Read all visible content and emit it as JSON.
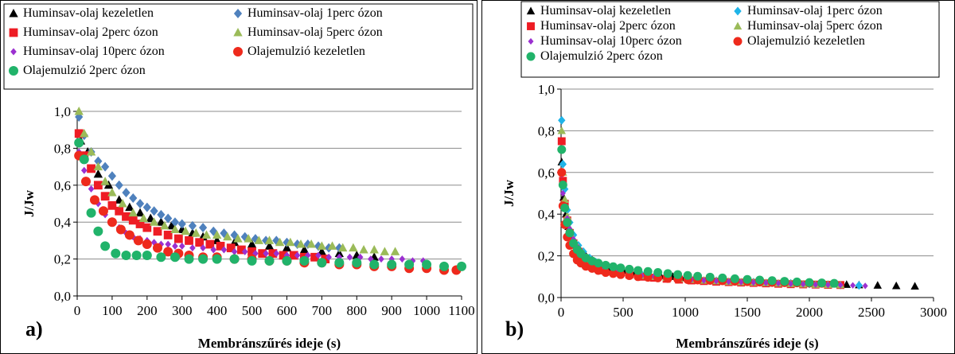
{
  "figure": {
    "colors": {
      "kezeletlen": "#000000",
      "perc1": "#4f81bd",
      "perc1_b": "#1fb4e8",
      "perc2": "#ee1c24",
      "perc5": "#9bbb59",
      "perc10": "#9b30d0",
      "olaj_kezeletlen": "#ee2a1c",
      "olaj_2perc": "#21b36a",
      "grid": "#8c8c8c"
    },
    "series_style": [
      {
        "marker": "triangle",
        "color_key": "kezeletlen"
      },
      {
        "marker": "diamond",
        "color_key": "perc1"
      },
      {
        "marker": "square",
        "color_key": "perc2"
      },
      {
        "marker": "triangle",
        "color_key": "perc5"
      },
      {
        "marker": "diamond-small",
        "color_key": "perc10"
      },
      {
        "marker": "circle",
        "color_key": "olaj_kezeletlen"
      },
      {
        "marker": "circle",
        "color_key": "olaj_2perc"
      }
    ]
  },
  "chart_data": [
    {
      "type": "scatter",
      "panel_label": "a)",
      "xlabel": "Membránszűrés ideje (s)",
      "ylabel": "J/Jw",
      "xlim": [
        0,
        1100
      ],
      "ylim": [
        0,
        1.0
      ],
      "xticks": [
        "0",
        "100",
        "200",
        "300",
        "400",
        "500",
        "600",
        "700",
        "800",
        "900",
        "1000",
        "1100"
      ],
      "yticks": [
        "0,0",
        "0,2",
        "0,4",
        "0,6",
        "0,8",
        "1,0"
      ],
      "grid": true,
      "legend": "top",
      "series": [
        {
          "name": "Huminsav-olaj kezeletlen",
          "x": [
            10,
            30,
            60,
            90,
            120,
            150,
            180,
            210,
            240,
            270,
            300,
            330,
            360,
            400,
            450,
            500,
            550,
            600,
            650,
            700,
            750,
            800,
            850
          ],
          "y": [
            0.84,
            0.78,
            0.66,
            0.6,
            0.52,
            0.48,
            0.45,
            0.42,
            0.4,
            0.38,
            0.36,
            0.34,
            0.32,
            0.3,
            0.29,
            0.28,
            0.27,
            0.26,
            0.25,
            0.24,
            0.23,
            0.22,
            0.21
          ]
        },
        {
          "name": "Huminsav-olaj 1perc ózon",
          "x": [
            5,
            20,
            40,
            60,
            80,
            100,
            120,
            140,
            160,
            180,
            200,
            220,
            240,
            260,
            280,
            300,
            330,
            360,
            390,
            420,
            450,
            480,
            510,
            540,
            570,
            600,
            630,
            660,
            690,
            720,
            750
          ],
          "y": [
            0.97,
            0.87,
            0.78,
            0.73,
            0.7,
            0.65,
            0.6,
            0.56,
            0.53,
            0.5,
            0.48,
            0.46,
            0.44,
            0.42,
            0.4,
            0.39,
            0.38,
            0.37,
            0.35,
            0.34,
            0.33,
            0.32,
            0.31,
            0.3,
            0.3,
            0.29,
            0.28,
            0.28,
            0.27,
            0.26,
            0.26
          ]
        },
        {
          "name": "Huminsav-olaj 2perc ózon",
          "x": [
            5,
            20,
            40,
            60,
            80,
            100,
            120,
            140,
            160,
            180,
            200,
            230,
            260,
            290,
            320,
            350,
            380,
            410,
            440,
            470,
            500,
            530,
            560,
            590,
            620,
            650,
            680,
            710
          ],
          "y": [
            0.88,
            0.76,
            0.69,
            0.6,
            0.54,
            0.49,
            0.46,
            0.43,
            0.41,
            0.39,
            0.37,
            0.35,
            0.33,
            0.31,
            0.3,
            0.29,
            0.28,
            0.27,
            0.26,
            0.25,
            0.24,
            0.23,
            0.23,
            0.22,
            0.22,
            0.21,
            0.21,
            0.2
          ]
        },
        {
          "name": "Huminsav-olaj 5perc ózon",
          "x": [
            5,
            20,
            40,
            60,
            80,
            100,
            130,
            160,
            190,
            220,
            250,
            280,
            310,
            340,
            370,
            400,
            430,
            460,
            490,
            520,
            550,
            580,
            610,
            640,
            670,
            700,
            730,
            760,
            790,
            820,
            850,
            880,
            910
          ],
          "y": [
            1.0,
            0.88,
            0.78,
            0.7,
            0.62,
            0.56,
            0.5,
            0.45,
            0.42,
            0.4,
            0.38,
            0.36,
            0.35,
            0.34,
            0.33,
            0.33,
            0.32,
            0.31,
            0.31,
            0.3,
            0.3,
            0.29,
            0.29,
            0.28,
            0.28,
            0.27,
            0.27,
            0.26,
            0.26,
            0.25,
            0.25,
            0.24,
            0.24
          ]
        },
        {
          "name": "Huminsav-olaj 10perc ózon",
          "x": [
            5,
            20,
            40,
            60,
            80,
            100,
            120,
            140,
            160,
            180,
            200,
            220,
            240,
            260,
            280,
            300,
            330,
            360,
            390,
            420,
            450,
            480,
            510,
            540,
            570,
            600,
            630,
            660,
            690,
            720,
            750,
            780,
            810,
            840,
            870,
            900,
            930,
            960,
            990
          ],
          "y": [
            0.78,
            0.68,
            0.58,
            0.5,
            0.44,
            0.4,
            0.37,
            0.34,
            0.32,
            0.31,
            0.3,
            0.29,
            0.28,
            0.28,
            0.27,
            0.27,
            0.26,
            0.26,
            0.25,
            0.25,
            0.24,
            0.24,
            0.23,
            0.23,
            0.23,
            0.22,
            0.22,
            0.22,
            0.22,
            0.21,
            0.21,
            0.21,
            0.21,
            0.2,
            0.2,
            0.2,
            0.2,
            0.19,
            0.19
          ]
        },
        {
          "name": "Olajemulzió kezeletlen",
          "x": [
            5,
            25,
            50,
            75,
            100,
            125,
            150,
            175,
            200,
            230,
            260,
            290,
            320,
            360,
            400,
            450,
            500,
            550,
            600,
            650,
            700,
            750,
            800,
            850,
            900,
            950,
            1000,
            1050,
            1085
          ],
          "y": [
            0.76,
            0.62,
            0.52,
            0.46,
            0.4,
            0.36,
            0.33,
            0.3,
            0.28,
            0.26,
            0.24,
            0.23,
            0.22,
            0.21,
            0.21,
            0.2,
            0.2,
            0.19,
            0.19,
            0.18,
            0.18,
            0.17,
            0.17,
            0.16,
            0.16,
            0.15,
            0.15,
            0.14,
            0.14
          ]
        },
        {
          "name": "Olajemulzió 2perc ózon",
          "x": [
            5,
            20,
            40,
            60,
            80,
            110,
            140,
            170,
            200,
            240,
            280,
            320,
            360,
            400,
            450,
            500,
            550,
            600,
            650,
            700,
            750,
            800,
            850,
            900,
            950,
            1000,
            1050,
            1100
          ],
          "y": [
            0.83,
            0.74,
            0.45,
            0.35,
            0.27,
            0.23,
            0.22,
            0.22,
            0.22,
            0.21,
            0.21,
            0.2,
            0.2,
            0.2,
            0.2,
            0.19,
            0.19,
            0.19,
            0.19,
            0.18,
            0.18,
            0.18,
            0.17,
            0.17,
            0.17,
            0.17,
            0.16,
            0.16
          ]
        }
      ]
    },
    {
      "type": "scatter",
      "panel_label": "b)",
      "xlabel": "Membránszűrés ideje (s)",
      "ylabel": "J/Jw",
      "xlim": [
        0,
        3000
      ],
      "ylim": [
        0,
        1.0
      ],
      "xticks": [
        "0",
        "500",
        "1000",
        "1500",
        "2000",
        "2500",
        "3000"
      ],
      "yticks": [
        "0,0",
        "0,2",
        "0,4",
        "0,6",
        "0,8",
        "1,0"
      ],
      "grid": true,
      "legend": "top",
      "series": [
        {
          "name": "Huminsav-olaj kezeletlen",
          "x": [
            5,
            20,
            40,
            60,
            90,
            120,
            160,
            200,
            250,
            300,
            400,
            500,
            600,
            700,
            800,
            900,
            1000,
            1100,
            1200,
            1300,
            1400,
            1500,
            1600,
            1700,
            1800,
            1900,
            2000,
            2100,
            2200,
            2300,
            2400,
            2550,
            2700,
            2850
          ],
          "y": [
            0.65,
            0.48,
            0.4,
            0.34,
            0.29,
            0.25,
            0.22,
            0.2,
            0.18,
            0.16,
            0.14,
            0.13,
            0.12,
            0.11,
            0.105,
            0.1,
            0.095,
            0.09,
            0.088,
            0.085,
            0.082,
            0.08,
            0.078,
            0.075,
            0.072,
            0.07,
            0.068,
            0.066,
            0.064,
            0.062,
            0.06,
            0.058,
            0.056,
            0.054
          ]
        },
        {
          "name": "Huminsav-olaj 1perc ózon",
          "x": [
            5,
            15,
            30,
            50,
            70,
            100,
            140,
            180,
            230,
            280,
            350,
            450,
            550,
            650,
            750,
            850,
            950,
            1100,
            1250,
            1400,
            1550,
            1700,
            1850,
            2000,
            2150,
            2250,
            2400
          ],
          "y": [
            0.85,
            0.64,
            0.52,
            0.42,
            0.36,
            0.3,
            0.25,
            0.22,
            0.19,
            0.17,
            0.15,
            0.13,
            0.12,
            0.11,
            0.1,
            0.095,
            0.09,
            0.085,
            0.08,
            0.077,
            0.074,
            0.071,
            0.068,
            0.065,
            0.062,
            0.06,
            0.058
          ]
        },
        {
          "name": "Huminsav-olaj 2perc ózon",
          "x": [
            5,
            15,
            30,
            50,
            70,
            100,
            140,
            180,
            230,
            280,
            350,
            450,
            550,
            650,
            750,
            850,
            950,
            1050,
            1150,
            1250,
            1350,
            1450,
            1550,
            1650,
            1750,
            1850,
            1950,
            2050,
            2150,
            2250
          ],
          "y": [
            0.75,
            0.56,
            0.45,
            0.37,
            0.31,
            0.26,
            0.22,
            0.19,
            0.17,
            0.15,
            0.13,
            0.12,
            0.11,
            0.1,
            0.095,
            0.09,
            0.086,
            0.082,
            0.079,
            0.076,
            0.074,
            0.072,
            0.07,
            0.068,
            0.066,
            0.064,
            0.063,
            0.062,
            0.061,
            0.06
          ]
        },
        {
          "name": "Huminsav-olaj 5perc ózon",
          "x": [
            5,
            15,
            30,
            50,
            70,
            100,
            140,
            180,
            230,
            280,
            350,
            450,
            550,
            650,
            750,
            850,
            950,
            1050,
            1150,
            1250,
            1350,
            1450,
            1550,
            1650,
            1750,
            1850,
            1950,
            2050,
            2150,
            2250
          ],
          "y": [
            0.8,
            0.6,
            0.47,
            0.39,
            0.33,
            0.28,
            0.24,
            0.21,
            0.18,
            0.16,
            0.14,
            0.125,
            0.115,
            0.105,
            0.1,
            0.095,
            0.09,
            0.086,
            0.082,
            0.079,
            0.076,
            0.074,
            0.072,
            0.07,
            0.068,
            0.066,
            0.064,
            0.062,
            0.061,
            0.06
          ]
        },
        {
          "name": "Huminsav-olaj 10perc ózon",
          "x": [
            5,
            15,
            30,
            50,
            70,
            100,
            140,
            180,
            230,
            280,
            350,
            450,
            550,
            650,
            750,
            850,
            950,
            1050,
            1150,
            1250,
            1350,
            1450,
            1550,
            1650,
            1750,
            1850,
            1950,
            2050,
            2150,
            2250,
            2350,
            2450
          ],
          "y": [
            0.59,
            0.5,
            0.44,
            0.38,
            0.33,
            0.28,
            0.24,
            0.21,
            0.18,
            0.16,
            0.14,
            0.125,
            0.115,
            0.105,
            0.1,
            0.095,
            0.09,
            0.086,
            0.082,
            0.079,
            0.076,
            0.074,
            0.072,
            0.07,
            0.068,
            0.066,
            0.064,
            0.062,
            0.061,
            0.06,
            0.058,
            0.056
          ]
        },
        {
          "name": "Olajemulzió kezeletlen",
          "x": [
            5,
            15,
            30,
            50,
            70,
            100,
            130,
            160,
            200,
            250,
            300,
            360,
            420,
            480,
            550,
            620,
            700,
            780,
            860,
            940,
            1020,
            1100,
            1200,
            1300,
            1400,
            1500,
            1600,
            1700,
            1800,
            1900,
            2000,
            2100
          ],
          "y": [
            0.6,
            0.44,
            0.35,
            0.29,
            0.25,
            0.21,
            0.18,
            0.165,
            0.15,
            0.14,
            0.13,
            0.12,
            0.115,
            0.11,
            0.105,
            0.1,
            0.097,
            0.094,
            0.091,
            0.088,
            0.086,
            0.084,
            0.082,
            0.08,
            0.078,
            0.076,
            0.074,
            0.072,
            0.071,
            0.07,
            0.069,
            0.068
          ]
        },
        {
          "name": "Olajemulzió 2perc ózon",
          "x": [
            5,
            15,
            30,
            50,
            70,
            100,
            130,
            160,
            200,
            250,
            300,
            360,
            420,
            480,
            550,
            620,
            700,
            780,
            860,
            940,
            1020,
            1100,
            1200,
            1300,
            1400,
            1500,
            1600,
            1700,
            1800,
            1900,
            2000,
            2100,
            2200
          ],
          "y": [
            0.71,
            0.54,
            0.43,
            0.36,
            0.31,
            0.26,
            0.23,
            0.21,
            0.19,
            0.175,
            0.165,
            0.155,
            0.148,
            0.142,
            0.136,
            0.13,
            0.125,
            0.12,
            0.115,
            0.11,
            0.106,
            0.102,
            0.098,
            0.094,
            0.09,
            0.087,
            0.084,
            0.081,
            0.078,
            0.075,
            0.072,
            0.07,
            0.068
          ]
        }
      ]
    }
  ]
}
